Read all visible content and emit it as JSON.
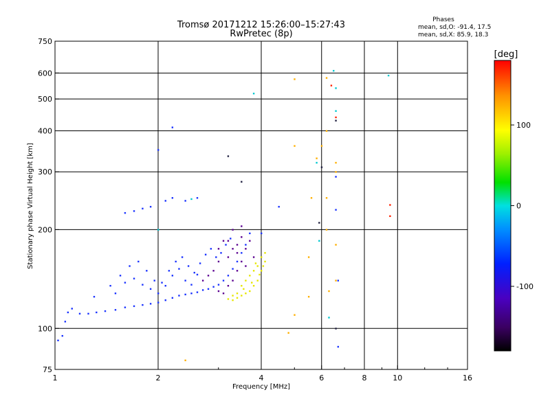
{
  "chart_data": {
    "type": "scatter",
    "title": "Tromsø 20171212 15:26:00–15:27:43",
    "subtitle": "RwPretec (8p)",
    "xlabel": "Frequency [MHz]",
    "ylabel": "Stationary phase Virtual Height [km]",
    "x_scale": "log",
    "y_scale": "log",
    "xlim": [
      1,
      16
    ],
    "ylim": [
      75,
      750
    ],
    "x_ticks": [
      1,
      2,
      4,
      6,
      8,
      10,
      16
    ],
    "y_ticks": [
      75,
      100,
      200,
      300,
      400,
      500,
      600,
      750
    ],
    "grid": true,
    "legend": {
      "title": "Phases",
      "line_o": "mean, sd,O: -91.4, 17.5",
      "line_x": "mean, sd,X:  85.9, 18.3",
      "position": "top-right"
    },
    "colorbar": {
      "label": "[deg]",
      "range": [
        -180,
        180
      ],
      "ticks": [
        100,
        0,
        -100
      ],
      "colormap": "rainbow-black-violet-blue-cyan-green-yellow-red"
    },
    "series": [
      {
        "phase_deg": -95,
        "color": "#1a33ff",
        "points": [
          [
            1.02,
            92
          ],
          [
            1.05,
            95
          ],
          [
            1.07,
            105
          ],
          [
            1.09,
            112
          ],
          [
            1.12,
            115
          ],
          [
            1.18,
            111
          ],
          [
            1.25,
            111
          ],
          [
            1.32,
            112
          ],
          [
            1.4,
            113
          ],
          [
            1.5,
            114
          ],
          [
            1.6,
            116
          ],
          [
            1.7,
            117
          ],
          [
            1.8,
            118
          ],
          [
            1.9,
            119
          ],
          [
            2.0,
            120
          ],
          [
            2.1,
            122
          ],
          [
            2.2,
            124
          ],
          [
            2.3,
            126
          ],
          [
            2.4,
            127
          ],
          [
            2.5,
            128
          ],
          [
            2.6,
            129
          ],
          [
            2.7,
            131
          ],
          [
            2.8,
            132
          ],
          [
            2.9,
            134
          ],
          [
            3.0,
            136
          ],
          [
            3.1,
            140
          ],
          [
            3.2,
            145
          ],
          [
            3.3,
            152
          ],
          [
            3.4,
            160
          ],
          [
            3.5,
            170
          ],
          [
            3.6,
            180
          ],
          [
            3.7,
            195
          ],
          [
            1.3,
            125
          ],
          [
            1.45,
            135
          ],
          [
            1.55,
            145
          ],
          [
            1.65,
            155
          ],
          [
            1.75,
            160
          ],
          [
            1.85,
            150
          ],
          [
            1.95,
            140
          ],
          [
            2.05,
            138
          ],
          [
            2.15,
            150
          ],
          [
            2.25,
            160
          ],
          [
            2.35,
            165
          ],
          [
            2.45,
            155
          ],
          [
            2.55,
            148
          ],
          [
            2.65,
            158
          ],
          [
            2.75,
            168
          ],
          [
            2.85,
            175
          ],
          [
            2.95,
            165
          ],
          [
            3.05,
            170
          ],
          [
            3.15,
            180
          ],
          [
            3.25,
            188
          ],
          [
            1.5,
            128
          ],
          [
            1.6,
            138
          ],
          [
            1.7,
            142
          ],
          [
            1.8,
            136
          ],
          [
            1.9,
            132
          ],
          [
            2.0,
            128
          ],
          [
            2.1,
            135
          ],
          [
            2.2,
            145
          ],
          [
            2.3,
            152
          ],
          [
            2.4,
            140
          ],
          [
            2.5,
            136
          ],
          [
            2.6,
            146
          ],
          [
            1.6,
            225
          ],
          [
            1.7,
            228
          ],
          [
            1.8,
            232
          ],
          [
            1.9,
            235
          ],
          [
            2.1,
            245
          ],
          [
            2.2,
            250
          ],
          [
            2.4,
            245
          ],
          [
            2.6,
            250
          ],
          [
            2.2,
            410
          ],
          [
            2.0,
            350
          ],
          [
            4.0,
            195
          ],
          [
            4.5,
            235
          ],
          [
            6.6,
            290
          ],
          [
            6.6,
            230
          ],
          [
            6.7,
            140
          ],
          [
            6.7,
            88
          ]
        ]
      },
      {
        "phase_deg": -150,
        "color": "#5a0090",
        "points": [
          [
            3.0,
            130
          ],
          [
            3.1,
            128
          ],
          [
            3.2,
            135
          ],
          [
            3.3,
            140
          ],
          [
            3.4,
            150
          ],
          [
            3.5,
            160
          ],
          [
            3.6,
            175
          ],
          [
            3.7,
            185
          ],
          [
            3.2,
            165
          ],
          [
            3.3,
            175
          ],
          [
            3.4,
            180
          ],
          [
            3.5,
            190
          ],
          [
            2.9,
            150
          ],
          [
            3.0,
            160
          ],
          [
            2.8,
            145
          ],
          [
            2.7,
            140
          ],
          [
            3.8,
            165
          ],
          [
            3.6,
            155
          ],
          [
            3.4,
            170
          ],
          [
            3.2,
            185
          ],
          [
            3.3,
            200
          ],
          [
            3.5,
            205
          ],
          [
            3.0,
            175
          ],
          [
            3.1,
            185
          ]
        ]
      },
      {
        "phase_deg": 95,
        "color": "#e6e600",
        "points": [
          [
            3.2,
            123
          ],
          [
            3.3,
            122
          ],
          [
            3.4,
            124
          ],
          [
            3.5,
            126
          ],
          [
            3.6,
            128
          ],
          [
            3.7,
            130
          ],
          [
            3.8,
            135
          ],
          [
            3.9,
            140
          ],
          [
            4.0,
            150
          ],
          [
            4.1,
            160
          ],
          [
            3.5,
            135
          ],
          [
            3.6,
            140
          ],
          [
            3.7,
            145
          ],
          [
            3.8,
            150
          ],
          [
            3.9,
            155
          ],
          [
            4.0,
            165
          ],
          [
            3.4,
            128
          ],
          [
            3.55,
            132
          ],
          [
            3.75,
            138
          ],
          [
            3.95,
            146
          ],
          [
            4.1,
            170
          ],
          [
            3.3,
            126
          ],
          [
            3.85,
            158
          ],
          [
            4.05,
            155
          ]
        ]
      },
      {
        "phase_deg": 60,
        "color": "#ffb000",
        "points": [
          [
            5.0,
            575
          ],
          [
            5.0,
            360
          ],
          [
            5.0,
            110
          ],
          [
            4.8,
            97
          ],
          [
            5.5,
            165
          ],
          [
            5.5,
            125
          ],
          [
            6.2,
            250
          ],
          [
            6.2,
            200
          ],
          [
            6.6,
            320
          ],
          [
            6.6,
            300
          ],
          [
            6.6,
            180
          ],
          [
            6.6,
            140
          ],
          [
            6.2,
            580
          ],
          [
            6.2,
            400
          ],
          [
            6.3,
            130
          ],
          [
            6.0,
            360
          ],
          [
            2.4,
            80
          ],
          [
            5.6,
            250
          ],
          [
            5.8,
            330
          ]
        ]
      },
      {
        "phase_deg": 165,
        "color": "#ff2000",
        "points": [
          [
            6.4,
            550
          ],
          [
            9.5,
            238
          ],
          [
            9.5,
            220
          ],
          [
            6.6,
            440
          ]
        ]
      },
      {
        "phase_deg": -5,
        "color": "#00c8d0",
        "points": [
          [
            2.0,
            200
          ],
          [
            2.5,
            248
          ],
          [
            3.8,
            520
          ],
          [
            9.4,
            590
          ],
          [
            6.5,
            610
          ],
          [
            6.6,
            540
          ],
          [
            5.8,
            320
          ],
          [
            5.9,
            185
          ],
          [
            6.6,
            460
          ],
          [
            6.3,
            108
          ]
        ]
      },
      {
        "phase_deg": -170,
        "color": "#202040",
        "points": [
          [
            6.0,
            310
          ],
          [
            6.6,
            430
          ],
          [
            6.6,
            100
          ],
          [
            5.9,
            210
          ],
          [
            3.5,
            280
          ],
          [
            3.2,
            335
          ]
        ]
      }
    ]
  }
}
